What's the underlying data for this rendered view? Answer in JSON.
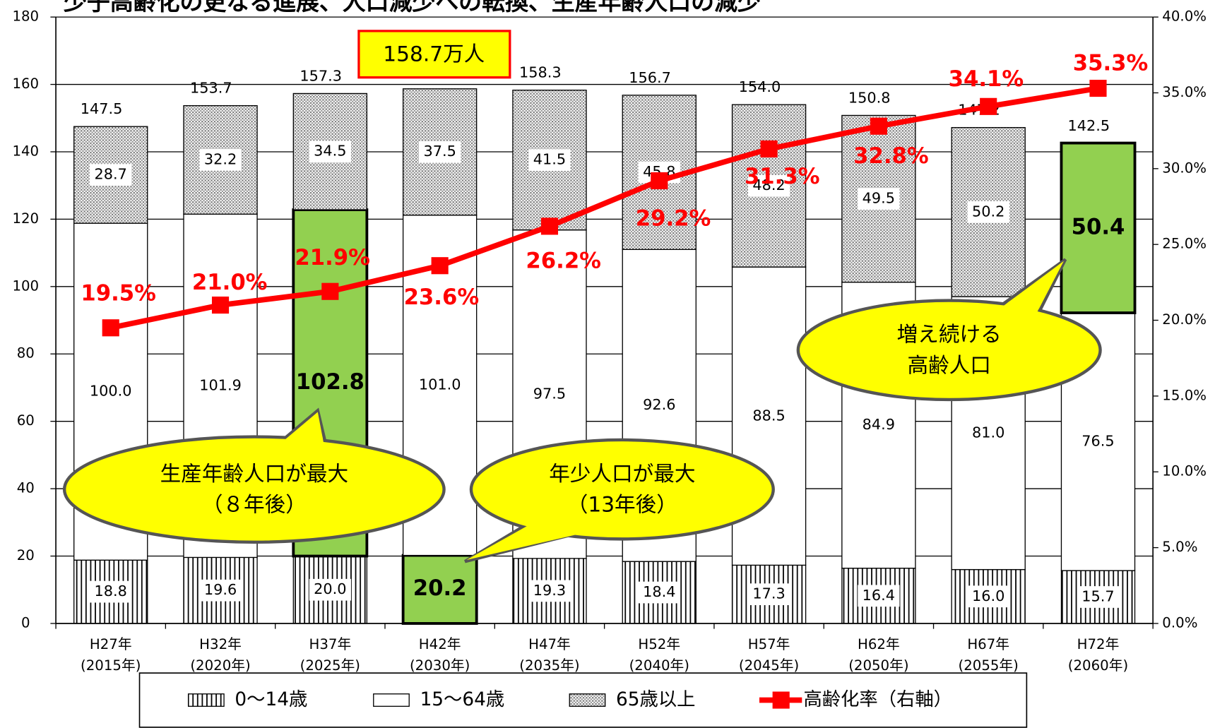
{
  "chart_data": {
    "type": "stacked-bar-line",
    "title": "少子高齢化の更なる進展、人口減少への転換、生産年齢人口の減少",
    "categories": [
      [
        "H27年",
        "(2015年)"
      ],
      [
        "H32年",
        "(2020年)"
      ],
      [
        "H37年",
        "(2025年)"
      ],
      [
        "H42年",
        "(2030年)"
      ],
      [
        "H47年",
        "(2035年)"
      ],
      [
        "H52年",
        "(2040年)"
      ],
      [
        "H57年",
        "(2045年)"
      ],
      [
        "H62年",
        "(2050年)"
      ],
      [
        "H67年",
        "(2055年)"
      ],
      [
        "H72年",
        "(2060年)"
      ]
    ],
    "series": [
      {
        "name": "0〜14歳",
        "pattern": "vertical-lines",
        "color": "#000000",
        "values": [
          18.8,
          19.6,
          20.0,
          20.2,
          19.3,
          18.4,
          17.3,
          16.4,
          16.0,
          15.7
        ],
        "value_labels": [
          "18.8",
          "19.6",
          "20.0",
          "20.2",
          "19.3",
          "18.4",
          "17.3",
          "16.4",
          "16.0",
          "15.7"
        ],
        "highlight": [
          3
        ]
      },
      {
        "name": "15〜64歳",
        "pattern": "none",
        "color": "#ffffff",
        "values": [
          100.0,
          101.9,
          102.8,
          101.0,
          97.5,
          92.6,
          88.5,
          84.9,
          81.0,
          76.5
        ],
        "value_labels": [
          "100.0",
          "101.9",
          "102.8",
          "101.0",
          "97.5",
          "92.6",
          "88.5",
          "84.9",
          "81.0",
          "76.5"
        ],
        "highlight": [
          2
        ]
      },
      {
        "name": "65歳以上",
        "pattern": "dots",
        "color": "#808080",
        "values": [
          28.7,
          32.2,
          34.5,
          37.5,
          41.5,
          45.8,
          48.2,
          49.5,
          50.2,
          50.4
        ],
        "value_labels": [
          "28.7",
          "32.2",
          "34.5",
          "37.5",
          "41.5",
          "45.8",
          "48.2",
          "49.5",
          "50.2",
          "50.4"
        ],
        "highlight": [
          9
        ]
      },
      {
        "name": "高齢化率（右軸）",
        "type": "line",
        "axis": "y2",
        "color": "#ff0000",
        "values": [
          19.5,
          21.0,
          21.9,
          23.6,
          26.2,
          29.2,
          31.3,
          32.8,
          34.1,
          35.3
        ],
        "value_labels": [
          "19.5%",
          "21.0%",
          "21.9%",
          "23.6%",
          "26.2%",
          "29.2%",
          "31.3%",
          "32.8%",
          "34.1%",
          "35.3%"
        ]
      }
    ],
    "totals": [
      147.5,
      153.7,
      157.3,
      158.7,
      158.3,
      156.7,
      154.0,
      150.8,
      147.2,
      142.5
    ],
    "totals_labels": [
      "147.5",
      "153.7",
      "157.3",
      "158.7万人",
      "158.3",
      "156.7",
      "154.0",
      "150.8",
      "147.2",
      "142.5"
    ],
    "highlight_color": "#92d050",
    "ylim": [
      0,
      180
    ],
    "yticks": [
      0,
      20,
      40,
      60,
      80,
      100,
      120,
      140,
      160,
      180
    ],
    "y2lim": [
      0,
      40
    ],
    "y2ticks": [
      {
        "value": 0,
        "label": "0.0%"
      },
      {
        "value": 5,
        "label": "5.0%"
      },
      {
        "value": 10,
        "label": "10.0%"
      },
      {
        "value": 15,
        "label": "15.0%"
      },
      {
        "value": 20,
        "label": "20.0%"
      },
      {
        "value": 25,
        "label": "25.0%"
      },
      {
        "value": 30,
        "label": "30.0%"
      },
      {
        "value": 35,
        "label": "35.0%"
      },
      {
        "value": 40,
        "label": "40.0%"
      }
    ],
    "grid": true,
    "legend": "bottom",
    "annotations": [
      {
        "lines": [
          "生産年齢人口が最大",
          "（８年後）"
        ]
      },
      {
        "lines": [
          "年少人口が最大",
          "（13年後）"
        ]
      },
      {
        "lines": [
          "増え続ける",
          "高齢人口"
        ]
      }
    ]
  }
}
